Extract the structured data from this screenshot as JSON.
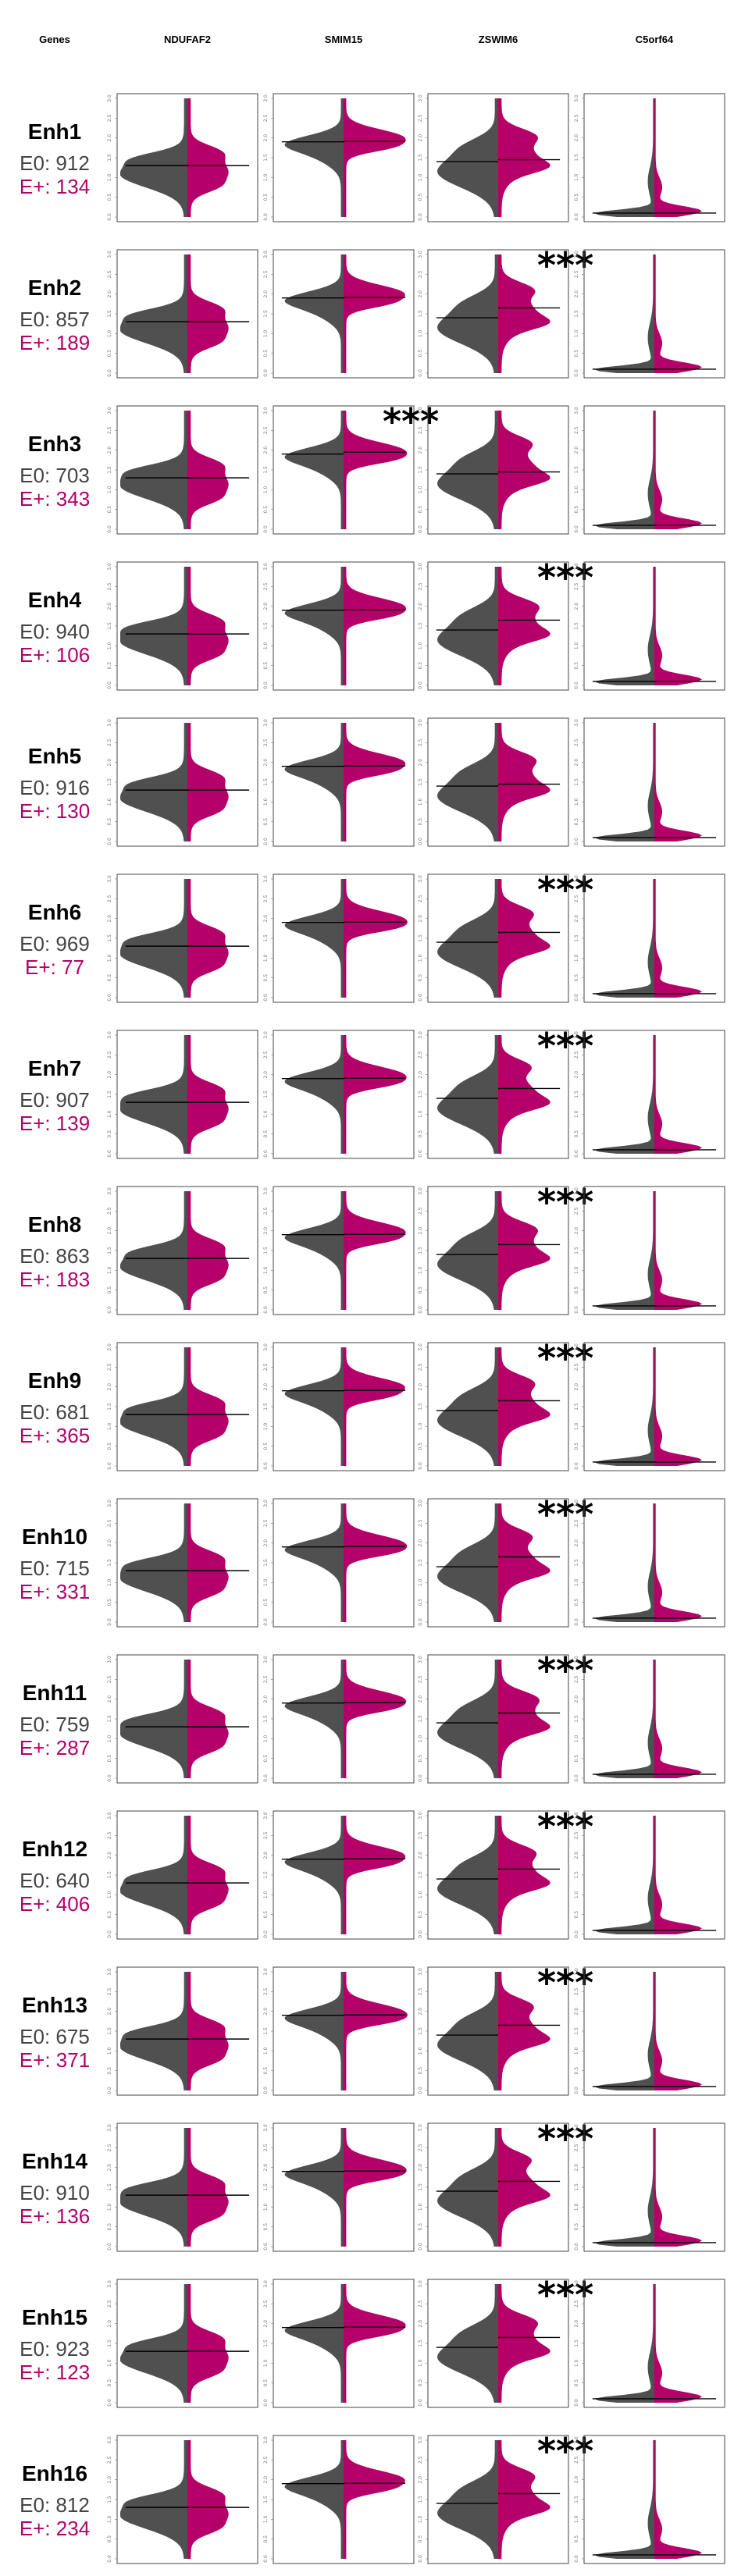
{
  "colors": {
    "e0": "#505050",
    "eplus": "#b5006a",
    "panel_border": "#444444",
    "median_line": "#000000"
  },
  "chart_data": {
    "type": "violin",
    "layout": "split-violin grid",
    "row_header": "Genes",
    "genes": [
      "NDUFAF2",
      "SMIM15",
      "ZSWIM6",
      "C5orf64"
    ],
    "y_tick_labels": [
      "0.0",
      "0.5",
      "1.0",
      "1.5",
      "2.0",
      "2.5",
      "3.0"
    ],
    "ylim": [
      0,
      3
    ],
    "groups": [
      "E0",
      "E+"
    ],
    "significance_marker": "***",
    "rows": [
      {
        "enhancer": "Enh1",
        "e0_label": "E0: 912",
        "eplus_label": "E+: 134",
        "significant": [
          false,
          false,
          false,
          false
        ]
      },
      {
        "enhancer": "Enh2",
        "e0_label": "E0: 857",
        "eplus_label": "E+: 189",
        "significant": [
          false,
          false,
          true,
          false
        ]
      },
      {
        "enhancer": "Enh3",
        "e0_label": "E0: 703",
        "eplus_label": "E+: 343",
        "significant": [
          false,
          true,
          false,
          false
        ]
      },
      {
        "enhancer": "Enh4",
        "e0_label": "E0: 940",
        "eplus_label": "E+: 106",
        "significant": [
          false,
          false,
          true,
          false
        ]
      },
      {
        "enhancer": "Enh5",
        "e0_label": "E0: 916",
        "eplus_label": "E+: 130",
        "significant": [
          false,
          false,
          false,
          false
        ]
      },
      {
        "enhancer": "Enh6",
        "e0_label": "E0: 969",
        "eplus_label": "E+: 77",
        "significant": [
          false,
          false,
          true,
          false
        ]
      },
      {
        "enhancer": "Enh7",
        "e0_label": "E0: 907",
        "eplus_label": "E+: 139",
        "significant": [
          false,
          false,
          true,
          false
        ]
      },
      {
        "enhancer": "Enh8",
        "e0_label": "E0: 863",
        "eplus_label": "E+: 183",
        "significant": [
          false,
          false,
          true,
          false
        ]
      },
      {
        "enhancer": "Enh9",
        "e0_label": "E0: 681",
        "eplus_label": "E+: 365",
        "significant": [
          false,
          false,
          true,
          false
        ]
      },
      {
        "enhancer": "Enh10",
        "e0_label": "E0: 715",
        "eplus_label": "E+: 331",
        "significant": [
          false,
          false,
          true,
          false
        ]
      },
      {
        "enhancer": "Enh11",
        "e0_label": "E0: 759",
        "eplus_label": "E+: 287",
        "significant": [
          false,
          false,
          true,
          false
        ]
      },
      {
        "enhancer": "Enh12",
        "e0_label": "E0: 640",
        "eplus_label": "E+: 406",
        "significant": [
          false,
          false,
          true,
          false
        ]
      },
      {
        "enhancer": "Enh13",
        "e0_label": "E0: 675",
        "eplus_label": "E+: 371",
        "significant": [
          false,
          false,
          true,
          false
        ]
      },
      {
        "enhancer": "Enh14",
        "e0_label": "E0: 910",
        "eplus_label": "E+: 136",
        "significant": [
          false,
          false,
          true,
          false
        ]
      },
      {
        "enhancer": "Enh15",
        "e0_label": "E0: 923",
        "eplus_label": "E+: 123",
        "significant": [
          false,
          false,
          true,
          false
        ]
      },
      {
        "enhancer": "Enh16",
        "e0_label": "E0: 812",
        "eplus_label": "E+: 234",
        "significant": [
          false,
          false,
          true,
          false
        ]
      }
    ],
    "gene_medians": {
      "NDUFAF2": 1.3,
      "SMIM15": 1.9,
      "ZSWIM6": 1.4,
      "C5orf64": 0.1
    },
    "eplus_median_shift": {
      "NDUFAF2": 0.0,
      "SMIM15": 0.05,
      "ZSWIM6": 0.25,
      "C5orf64": 0.0
    }
  }
}
